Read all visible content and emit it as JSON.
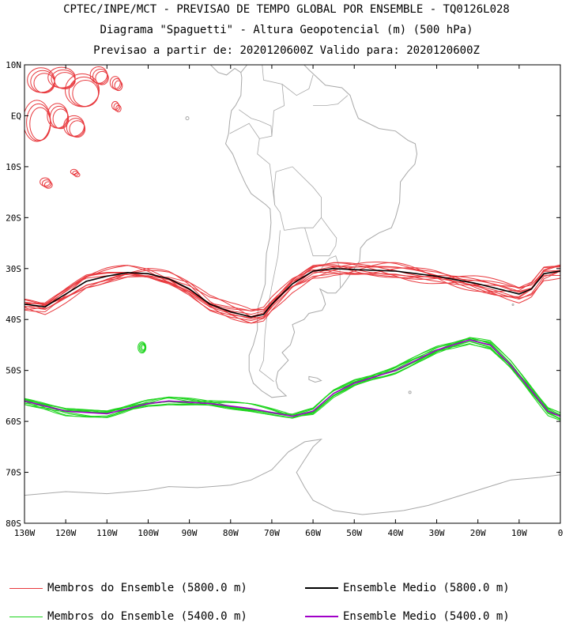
{
  "header": {
    "line1": "CPTEC/INPE/MCT - PREVISAO DE TEMPO GLOBAL POR ENSEMBLE - TQ0126L028",
    "line2": "Diagrama \"Spaguetti\" - Altura Geopotencial (m) (500 hPa)",
    "line3": "Previsao a partir de: 2020120600Z  Valido para: 2020120600Z"
  },
  "map": {
    "lat_labels": [
      "10N",
      "EQ",
      "10S",
      "20S",
      "30S",
      "40S",
      "50S",
      "60S",
      "70S",
      "80S"
    ],
    "lon_labels": [
      "130W",
      "120W",
      "110W",
      "100W",
      "90W",
      "80W",
      "70W",
      "60W",
      "50W",
      "40W",
      "30W",
      "20W",
      "10W",
      "0"
    ],
    "lat_range": [
      -80,
      10
    ],
    "lon_range": [
      -130,
      0
    ],
    "contour_5800_lonlat": [
      [
        -130,
        -37
      ],
      [
        -125,
        -37.5
      ],
      [
        -120,
        -35
      ],
      [
        -115,
        -32.5
      ],
      [
        -110,
        -31.5
      ],
      [
        -105,
        -30.8
      ],
      [
        -100,
        -31
      ],
      [
        -95,
        -32
      ],
      [
        -90,
        -34
      ],
      [
        -85,
        -37
      ],
      [
        -80,
        -38.5
      ],
      [
        -75,
        -39.5
      ],
      [
        -72,
        -39
      ],
      [
        -70,
        -37
      ],
      [
        -65,
        -33
      ],
      [
        -60,
        -30.5
      ],
      [
        -55,
        -30
      ],
      [
        -50,
        -30.2
      ],
      [
        -40,
        -30.5
      ],
      [
        -30,
        -31.5
      ],
      [
        -20,
        -33
      ],
      [
        -10,
        -35
      ],
      [
        -7,
        -34
      ],
      [
        -4,
        -31
      ],
      [
        0,
        -30.5
      ]
    ],
    "contour_5400_lonlat": [
      [
        -130,
        -56
      ],
      [
        -120,
        -58
      ],
      [
        -110,
        -58.5
      ],
      [
        -100,
        -56.5
      ],
      [
        -95,
        -56
      ],
      [
        -85,
        -56.5
      ],
      [
        -75,
        -57.5
      ],
      [
        -65,
        -59
      ],
      [
        -60,
        -58
      ],
      [
        -55,
        -54.5
      ],
      [
        -50,
        -52.5
      ],
      [
        -40,
        -50
      ],
      [
        -30,
        -46
      ],
      [
        -22,
        -44
      ],
      [
        -17,
        -45
      ],
      [
        -12,
        -49
      ],
      [
        -7,
        -54
      ],
      [
        -3,
        -58
      ],
      [
        0,
        -59
      ]
    ],
    "colors": {
      "member_5800": "#e8383d",
      "member_5400": "#1ed41e",
      "mean_5800": "#000000",
      "mean_5400": "#a000c8",
      "coast": "#a8a8a8"
    }
  },
  "legend": {
    "member_5800": "Membros do Ensemble (5800.0 m)",
    "mean_5800": "Ensemble Medio (5800.0 m)",
    "member_5400": "Membros do Ensemble (5400.0 m)",
    "mean_5400": "Ensemble Medio (5400.0 m)"
  }
}
